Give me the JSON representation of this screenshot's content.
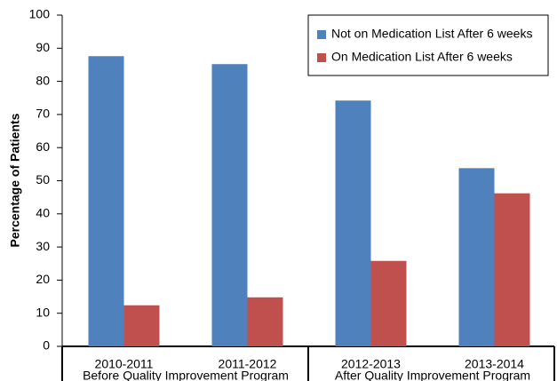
{
  "chart_data": {
    "type": "bar",
    "y_axis_label": "Percentage of Patients",
    "categories": [
      "2010-2011",
      "2011-2012",
      "2012-2013",
      "2013-2014"
    ],
    "group_labels": [
      "Before Quality Improvement Program",
      "After Quality Improvement Program"
    ],
    "series": [
      {
        "name": "Not on Medication List After 6 weeks",
        "color": "#4f81bd",
        "values": [
          87.6,
          85.2,
          74.2,
          53.8
        ]
      },
      {
        "name": "On Medication List After 6 weeks",
        "color": "#c0504d",
        "values": [
          12.4,
          14.8,
          25.8,
          46.2
        ]
      }
    ],
    "ylim": [
      0,
      100
    ],
    "yticks": [
      0,
      10,
      20,
      30,
      40,
      50,
      60,
      70,
      80,
      90,
      100
    ],
    "grid": false,
    "legend": "top-right"
  }
}
